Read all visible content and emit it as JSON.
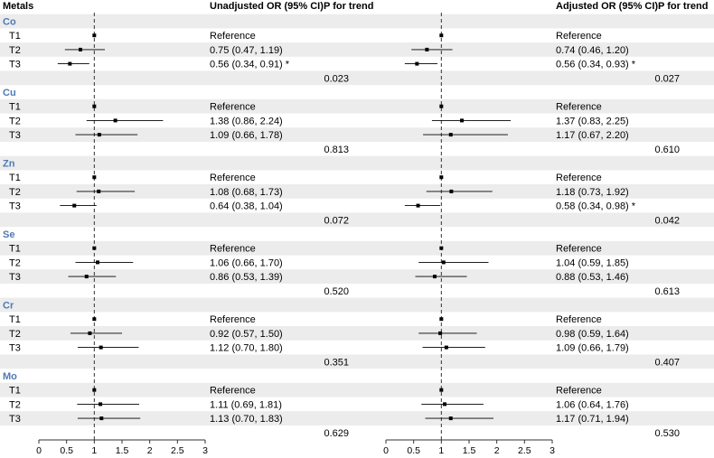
{
  "chart_data": {
    "type": "forest",
    "headers": {
      "metals": "Metals",
      "unadjusted": "Unadjusted OR (95% CI)",
      "adjusted": "Adjusted OR (95% CI)",
      "p_trend_left": "P for trend",
      "p_trend_right": "P for trend"
    },
    "colors": {
      "group_label": "#4f79b5",
      "band": "#ececec",
      "line": "#000000"
    },
    "x_axis": {
      "left": {
        "range": [
          0,
          3
        ],
        "ticks": [
          "0",
          "0.5",
          "1",
          "1.5",
          "2",
          "2.5",
          "3"
        ],
        "ref_line": 1
      },
      "right": {
        "range": [
          0,
          3
        ],
        "ticks": [
          "0",
          "0.5",
          "1",
          "1.5",
          "2",
          "2.5",
          "3"
        ],
        "ref_line": 1
      }
    },
    "groups": [
      {
        "name": "Co",
        "p_unadj": "0.023",
        "p_adj": "0.027",
        "rows": [
          {
            "label": "T1",
            "unadj_text": "Reference",
            "adj_text": "Reference",
            "unadj": [
              1,
              1,
              1
            ],
            "adj": [
              1,
              1,
              1
            ]
          },
          {
            "label": "T2",
            "unadj_text": "0.75 (0.47, 1.19)",
            "adj_text": "0.74 (0.46, 1.20)",
            "unadj": [
              0.75,
              0.47,
              1.19
            ],
            "adj": [
              0.74,
              0.46,
              1.2
            ]
          },
          {
            "label": "T3",
            "unadj_text": "0.56 (0.34, 0.91) *",
            "adj_text": "0.56 (0.34, 0.93) *",
            "unadj": [
              0.56,
              0.34,
              0.91
            ],
            "adj": [
              0.56,
              0.34,
              0.93
            ]
          }
        ]
      },
      {
        "name": "Cu",
        "p_unadj": "0.813",
        "p_adj": "0.610",
        "rows": [
          {
            "label": "T1",
            "unadj_text": "Reference",
            "adj_text": "Reference",
            "unadj": [
              1,
              1,
              1
            ],
            "adj": [
              1,
              1,
              1
            ]
          },
          {
            "label": "T2",
            "unadj_text": "1.38 (0.86, 2.24)",
            "adj_text": "1.37 (0.83, 2.25)",
            "unadj": [
              1.38,
              0.86,
              2.24
            ],
            "adj": [
              1.37,
              0.83,
              2.25
            ]
          },
          {
            "label": "T3",
            "unadj_text": "1.09 (0.66, 1.78)",
            "adj_text": "1.17 (0.67, 2.20)",
            "unadj": [
              1.09,
              0.66,
              1.78
            ],
            "adj": [
              1.17,
              0.67,
              2.2
            ]
          }
        ]
      },
      {
        "name": "Zn",
        "p_unadj": "0.072",
        "p_adj": "0.042",
        "rows": [
          {
            "label": "T1",
            "unadj_text": "Reference",
            "adj_text": "Reference",
            "unadj": [
              1,
              1,
              1
            ],
            "adj": [
              1,
              1,
              1
            ]
          },
          {
            "label": "T2",
            "unadj_text": "1.08 (0.68, 1.73)",
            "adj_text": "1.18 (0.73, 1.92)",
            "unadj": [
              1.08,
              0.68,
              1.73
            ],
            "adj": [
              1.18,
              0.73,
              1.92
            ]
          },
          {
            "label": "T3",
            "unadj_text": "0.64 (0.38, 1.04)",
            "adj_text": "0.58 (0.34, 0.98) *",
            "unadj": [
              0.64,
              0.38,
              1.04
            ],
            "adj": [
              0.58,
              0.34,
              0.98
            ]
          }
        ]
      },
      {
        "name": "Se",
        "p_unadj": "0.520",
        "p_adj": "0.613",
        "rows": [
          {
            "label": "T1",
            "unadj_text": "Reference",
            "adj_text": "Reference",
            "unadj": [
              1,
              1,
              1
            ],
            "adj": [
              1,
              1,
              1
            ]
          },
          {
            "label": "T2",
            "unadj_text": "1.06 (0.66, 1.70)",
            "adj_text": "1.04 (0.59, 1.85)",
            "unadj": [
              1.06,
              0.66,
              1.7
            ],
            "adj": [
              1.04,
              0.59,
              1.85
            ]
          },
          {
            "label": "T3",
            "unadj_text": "0.86 (0.53, 1.39)",
            "adj_text": "0.88 (0.53, 1.46)",
            "unadj": [
              0.86,
              0.53,
              1.39
            ],
            "adj": [
              0.88,
              0.53,
              1.46
            ]
          }
        ]
      },
      {
        "name": "Cr",
        "p_unadj": "0.351",
        "p_adj": "0.407",
        "rows": [
          {
            "label": "T1",
            "unadj_text": "Reference",
            "adj_text": "Reference",
            "unadj": [
              1,
              1,
              1
            ],
            "adj": [
              1,
              1,
              1
            ]
          },
          {
            "label": "T2",
            "unadj_text": "0.92 (0.57, 1.50)",
            "adj_text": "0.98 (0.59, 1.64)",
            "unadj": [
              0.92,
              0.57,
              1.5
            ],
            "adj": [
              0.98,
              0.59,
              1.64
            ]
          },
          {
            "label": "T3",
            "unadj_text": "1.12 (0.70, 1.80)",
            "adj_text": "1.09 (0.66, 1.79)",
            "unadj": [
              1.12,
              0.7,
              1.8
            ],
            "adj": [
              1.09,
              0.66,
              1.79
            ]
          }
        ]
      },
      {
        "name": "Mo",
        "p_unadj": "0.629",
        "p_adj": "0.530",
        "rows": [
          {
            "label": "T1",
            "unadj_text": "Reference",
            "adj_text": "Reference",
            "unadj": [
              1,
              1,
              1
            ],
            "adj": [
              1,
              1,
              1
            ]
          },
          {
            "label": "T2",
            "unadj_text": "1.11 (0.69, 1.81)",
            "adj_text": "1.06 (0.64, 1.76)",
            "unadj": [
              1.11,
              0.69,
              1.81
            ],
            "adj": [
              1.06,
              0.64,
              1.76
            ]
          },
          {
            "label": "T3",
            "unadj_text": "1.13 (0.70, 1.83)",
            "adj_text": "1.17 (0.71, 1.94)",
            "unadj": [
              1.13,
              0.7,
              1.83
            ],
            "adj": [
              1.17,
              0.71,
              1.94
            ]
          }
        ]
      }
    ]
  }
}
